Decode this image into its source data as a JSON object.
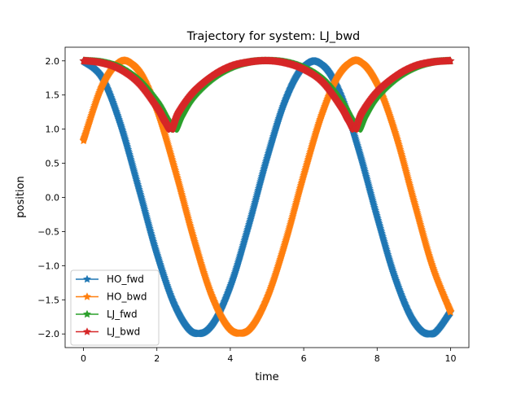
{
  "chart_data": {
    "type": "line",
    "title": "Trajectory for system: LJ_bwd",
    "xlabel": "time",
    "ylabel": "position",
    "xlim": [
      -0.5,
      10.5
    ],
    "ylim": [
      -2.2,
      2.2
    ],
    "xticks": [
      0,
      2,
      4,
      6,
      8,
      10
    ],
    "xtick_labels": [
      "0",
      "2",
      "4",
      "6",
      "8",
      "10"
    ],
    "yticks": [
      -2.0,
      -1.5,
      -1.0,
      -0.5,
      0.0,
      0.5,
      1.0,
      1.5,
      2.0
    ],
    "ytick_labels": [
      "−2.0",
      "−1.5",
      "−1.0",
      "−0.5",
      "0.0",
      "0.5",
      "1.0",
      "1.5",
      "2.0"
    ],
    "grid": false,
    "legend_position": "lower-left",
    "marker": "star",
    "series": [
      {
        "name": "HO_fwd",
        "color": "#1f77b4",
        "x": [
          0,
          0.5,
          1,
          1.5,
          2,
          2.5,
          3,
          3.5,
          4,
          4.5,
          5,
          5.5,
          6,
          6.5,
          7,
          7.5,
          8,
          8.5,
          9,
          9.5,
          10
        ],
        "y": [
          2.0,
          1.76,
          1.08,
          0.14,
          -0.83,
          -1.6,
          -1.98,
          -1.87,
          -1.31,
          -0.42,
          0.57,
          1.42,
          1.92,
          1.95,
          1.51,
          0.69,
          -0.29,
          -1.2,
          -1.82,
          -2.0,
          -1.68
        ]
      },
      {
        "name": "HO_bwd",
        "color": "#ff7f0e",
        "x": [
          0,
          0.5,
          1,
          1.5,
          2,
          2.5,
          3,
          3.5,
          4,
          4.5,
          5,
          5.5,
          6,
          6.5,
          7,
          7.5,
          8,
          8.5,
          9,
          9.5,
          10
        ],
        "y": [
          0.83,
          1.62,
          1.99,
          1.86,
          1.28,
          0.39,
          -0.6,
          -1.45,
          -1.93,
          -1.94,
          -1.48,
          -0.66,
          0.32,
          1.22,
          1.83,
          2.0,
          1.66,
          0.93,
          -0.05,
          -1.0,
          -1.68
        ]
      },
      {
        "name": "LJ_fwd",
        "color": "#2ca02c",
        "x": [
          0,
          0.5,
          1,
          1.5,
          2,
          2.3,
          2.5,
          2.7,
          3,
          3.5,
          4,
          4.5,
          5,
          5.5,
          6,
          6.5,
          7,
          7.3,
          7.5,
          7.7,
          8,
          8.5,
          9,
          9.5,
          10
        ],
        "y": [
          2.0,
          1.98,
          1.9,
          1.72,
          1.4,
          1.12,
          1.0,
          1.22,
          1.48,
          1.74,
          1.9,
          1.98,
          2.0,
          1.98,
          1.9,
          1.74,
          1.42,
          1.14,
          1.0,
          1.22,
          1.48,
          1.74,
          1.9,
          1.98,
          2.0
        ]
      },
      {
        "name": "LJ_bwd",
        "color": "#d62728",
        "x": [
          0,
          0.5,
          1,
          1.5,
          2,
          2.2,
          2.4,
          2.6,
          3,
          3.5,
          4,
          4.5,
          5,
          5.5,
          6,
          6.5,
          7,
          7.2,
          7.4,
          7.6,
          8,
          8.5,
          9,
          9.5,
          10
        ],
        "y": [
          2.0,
          1.97,
          1.88,
          1.68,
          1.32,
          1.13,
          1.0,
          1.25,
          1.55,
          1.78,
          1.92,
          1.98,
          2.0,
          1.97,
          1.88,
          1.7,
          1.34,
          1.15,
          1.0,
          1.25,
          1.55,
          1.78,
          1.92,
          1.98,
          2.0
        ]
      }
    ]
  }
}
